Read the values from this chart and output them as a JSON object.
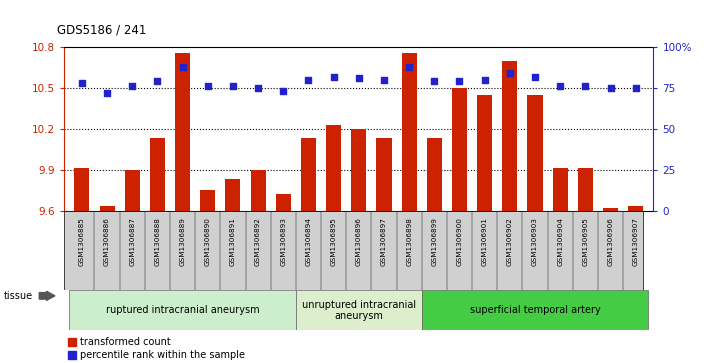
{
  "title": "GDS5186 / 241",
  "samples": [
    "GSM1306885",
    "GSM1306886",
    "GSM1306887",
    "GSM1306888",
    "GSM1306889",
    "GSM1306890",
    "GSM1306891",
    "GSM1306892",
    "GSM1306893",
    "GSM1306894",
    "GSM1306895",
    "GSM1306896",
    "GSM1306897",
    "GSM1306898",
    "GSM1306899",
    "GSM1306900",
    "GSM1306901",
    "GSM1306902",
    "GSM1306903",
    "GSM1306904",
    "GSM1306905",
    "GSM1306906",
    "GSM1306907"
  ],
  "transformed_count": [
    9.91,
    9.63,
    9.9,
    10.13,
    10.76,
    9.75,
    9.83,
    9.9,
    9.72,
    10.13,
    10.23,
    10.2,
    10.13,
    10.76,
    10.13,
    10.5,
    10.45,
    10.7,
    10.45,
    9.91,
    9.91,
    9.62,
    9.63
  ],
  "percentile_rank": [
    78,
    72,
    76,
    79,
    88,
    76,
    76,
    75,
    73,
    80,
    82,
    81,
    80,
    88,
    79,
    79,
    80,
    84,
    82,
    76,
    76,
    75,
    75
  ],
  "ylim_left": [
    9.6,
    10.8
  ],
  "yticks_left": [
    9.6,
    9.9,
    10.2,
    10.5,
    10.8
  ],
  "yticks_right": [
    0,
    25,
    50,
    75,
    100
  ],
  "ytick_labels_right": [
    "0",
    "25",
    "50",
    "75",
    "100%"
  ],
  "bar_color": "#cc2200",
  "dot_color": "#2222cc",
  "bar_bottom": 9.6,
  "groups": [
    {
      "label": "ruptured intracranial aneurysm",
      "start": 0,
      "end": 9,
      "color": "#cceecc"
    },
    {
      "label": "unruptured intracranial\naneurysm",
      "start": 9,
      "end": 14,
      "color": "#ddeecc"
    },
    {
      "label": "superficial temporal artery",
      "start": 14,
      "end": 23,
      "color": "#44cc44"
    }
  ],
  "tissue_label": "tissue",
  "plot_bg": "#ffffff",
  "xtick_bg": "#d0d0d0"
}
